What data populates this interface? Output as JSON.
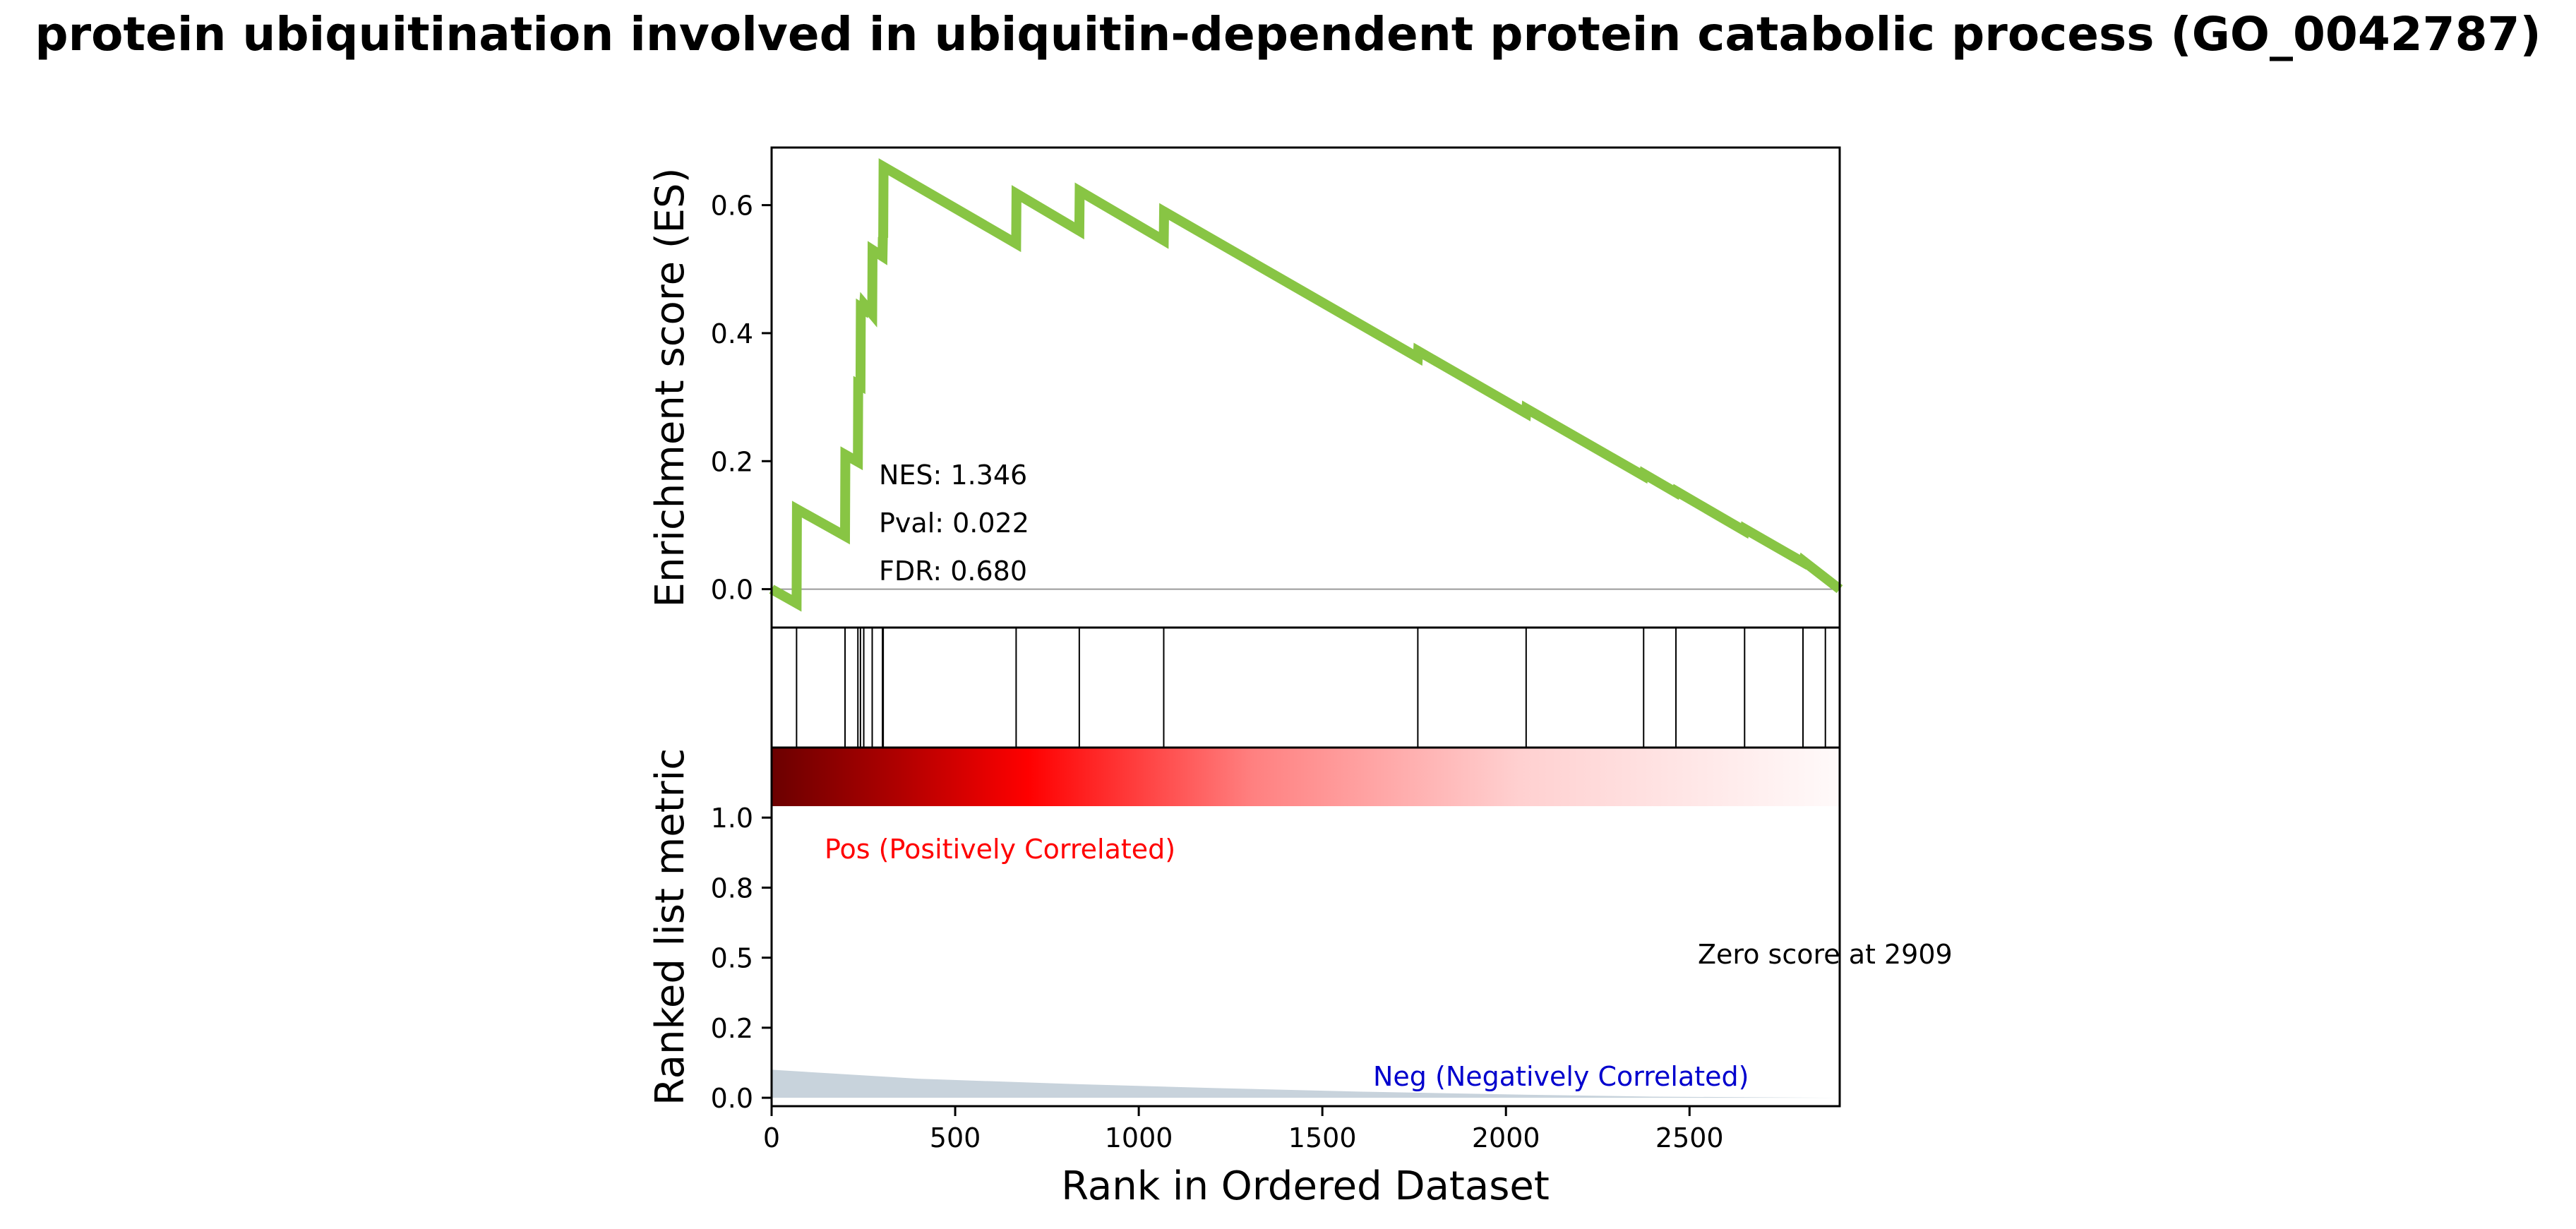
{
  "title": "protein ubiquitination involved in ubiquitin-dependent protein catabolic process (GO_0042787)",
  "chart_data": [
    {
      "type": "line",
      "panel": "enrichment",
      "ylabel": "Enrichment score (ES)",
      "xlim": [
        0,
        2909
      ],
      "ylim": [
        -0.06,
        0.69
      ],
      "yticks": [
        "0.0",
        "0.2",
        "0.4",
        "0.6"
      ],
      "ytick_values": [
        0,
        0.2,
        0.4,
        0.6
      ],
      "line_color": "#88c544",
      "zero_line": true,
      "stats": {
        "nes": "NES: 1.346",
        "pval": "Pval: 0.022",
        "fdr": "FDR: 0.680"
      },
      "series": [
        {
          "x": [
            0,
            68,
            69,
            200,
            201,
            235,
            236,
            242,
            243,
            251,
            252,
            274,
            275,
            302,
            303,
            304,
            305,
            666,
            667,
            838,
            839,
            1068,
            1069,
            1760,
            1761,
            2055,
            2056,
            2375,
            2376,
            2463,
            2464,
            2650,
            2651,
            2809,
            2810,
            2909
          ],
          "y": [
            0,
            -0.022,
            0.125,
            0.083,
            0.21,
            0.199,
            0.32,
            0.318,
            0.44,
            0.437,
            0.445,
            0.43,
            0.53,
            0.52,
            0.55,
            0.549,
            0.66,
            0.54,
            0.618,
            0.56,
            0.622,
            0.545,
            0.59,
            0.362,
            0.372,
            0.275,
            0.282,
            0.177,
            0.18,
            0.151,
            0.153,
            0.091,
            0.094,
            0.042,
            0.044,
            0.0
          ]
        }
      ]
    },
    {
      "type": "hits",
      "panel": "gene-set-hits",
      "hit_positions": [
        68,
        200,
        235,
        242,
        251,
        274,
        302,
        304,
        666,
        838,
        1068,
        1760,
        2055,
        2375,
        2463,
        2650,
        2809,
        2870
      ]
    },
    {
      "type": "area",
      "panel": "ranked-list",
      "ylabel": "Ranked list metric",
      "xlabel": "Rank in Ordered Dataset",
      "xlim": [
        0,
        2909
      ],
      "ylim": [
        -0.03,
        1.25
      ],
      "xticks": [
        "0",
        "500",
        "1000",
        "1500",
        "2000",
        "2500"
      ],
      "xtick_values": [
        0,
        500,
        1000,
        1500,
        2000,
        2500
      ],
      "yticks": [
        "0.0",
        "0.2",
        "0.5",
        "0.8",
        "1.0"
      ],
      "ytick_values": [
        0,
        0.25,
        0.5,
        0.75,
        1.0
      ],
      "fill_color": "#c8d3dc",
      "series": [
        {
          "x": [
            0,
            400,
            800,
            1200,
            1600,
            2000,
            2400,
            2909
          ],
          "y": [
            0.1,
            0.068,
            0.05,
            0.035,
            0.022,
            0.012,
            0.004,
            0.0
          ]
        }
      ],
      "pos_label": "Pos (Positively Correlated)",
      "neg_label": "Neg (Negatively Correlated)",
      "zero_score_label": "Zero score at 2909",
      "pos_color": "#ff0000",
      "neg_color": "#0000cd"
    }
  ]
}
